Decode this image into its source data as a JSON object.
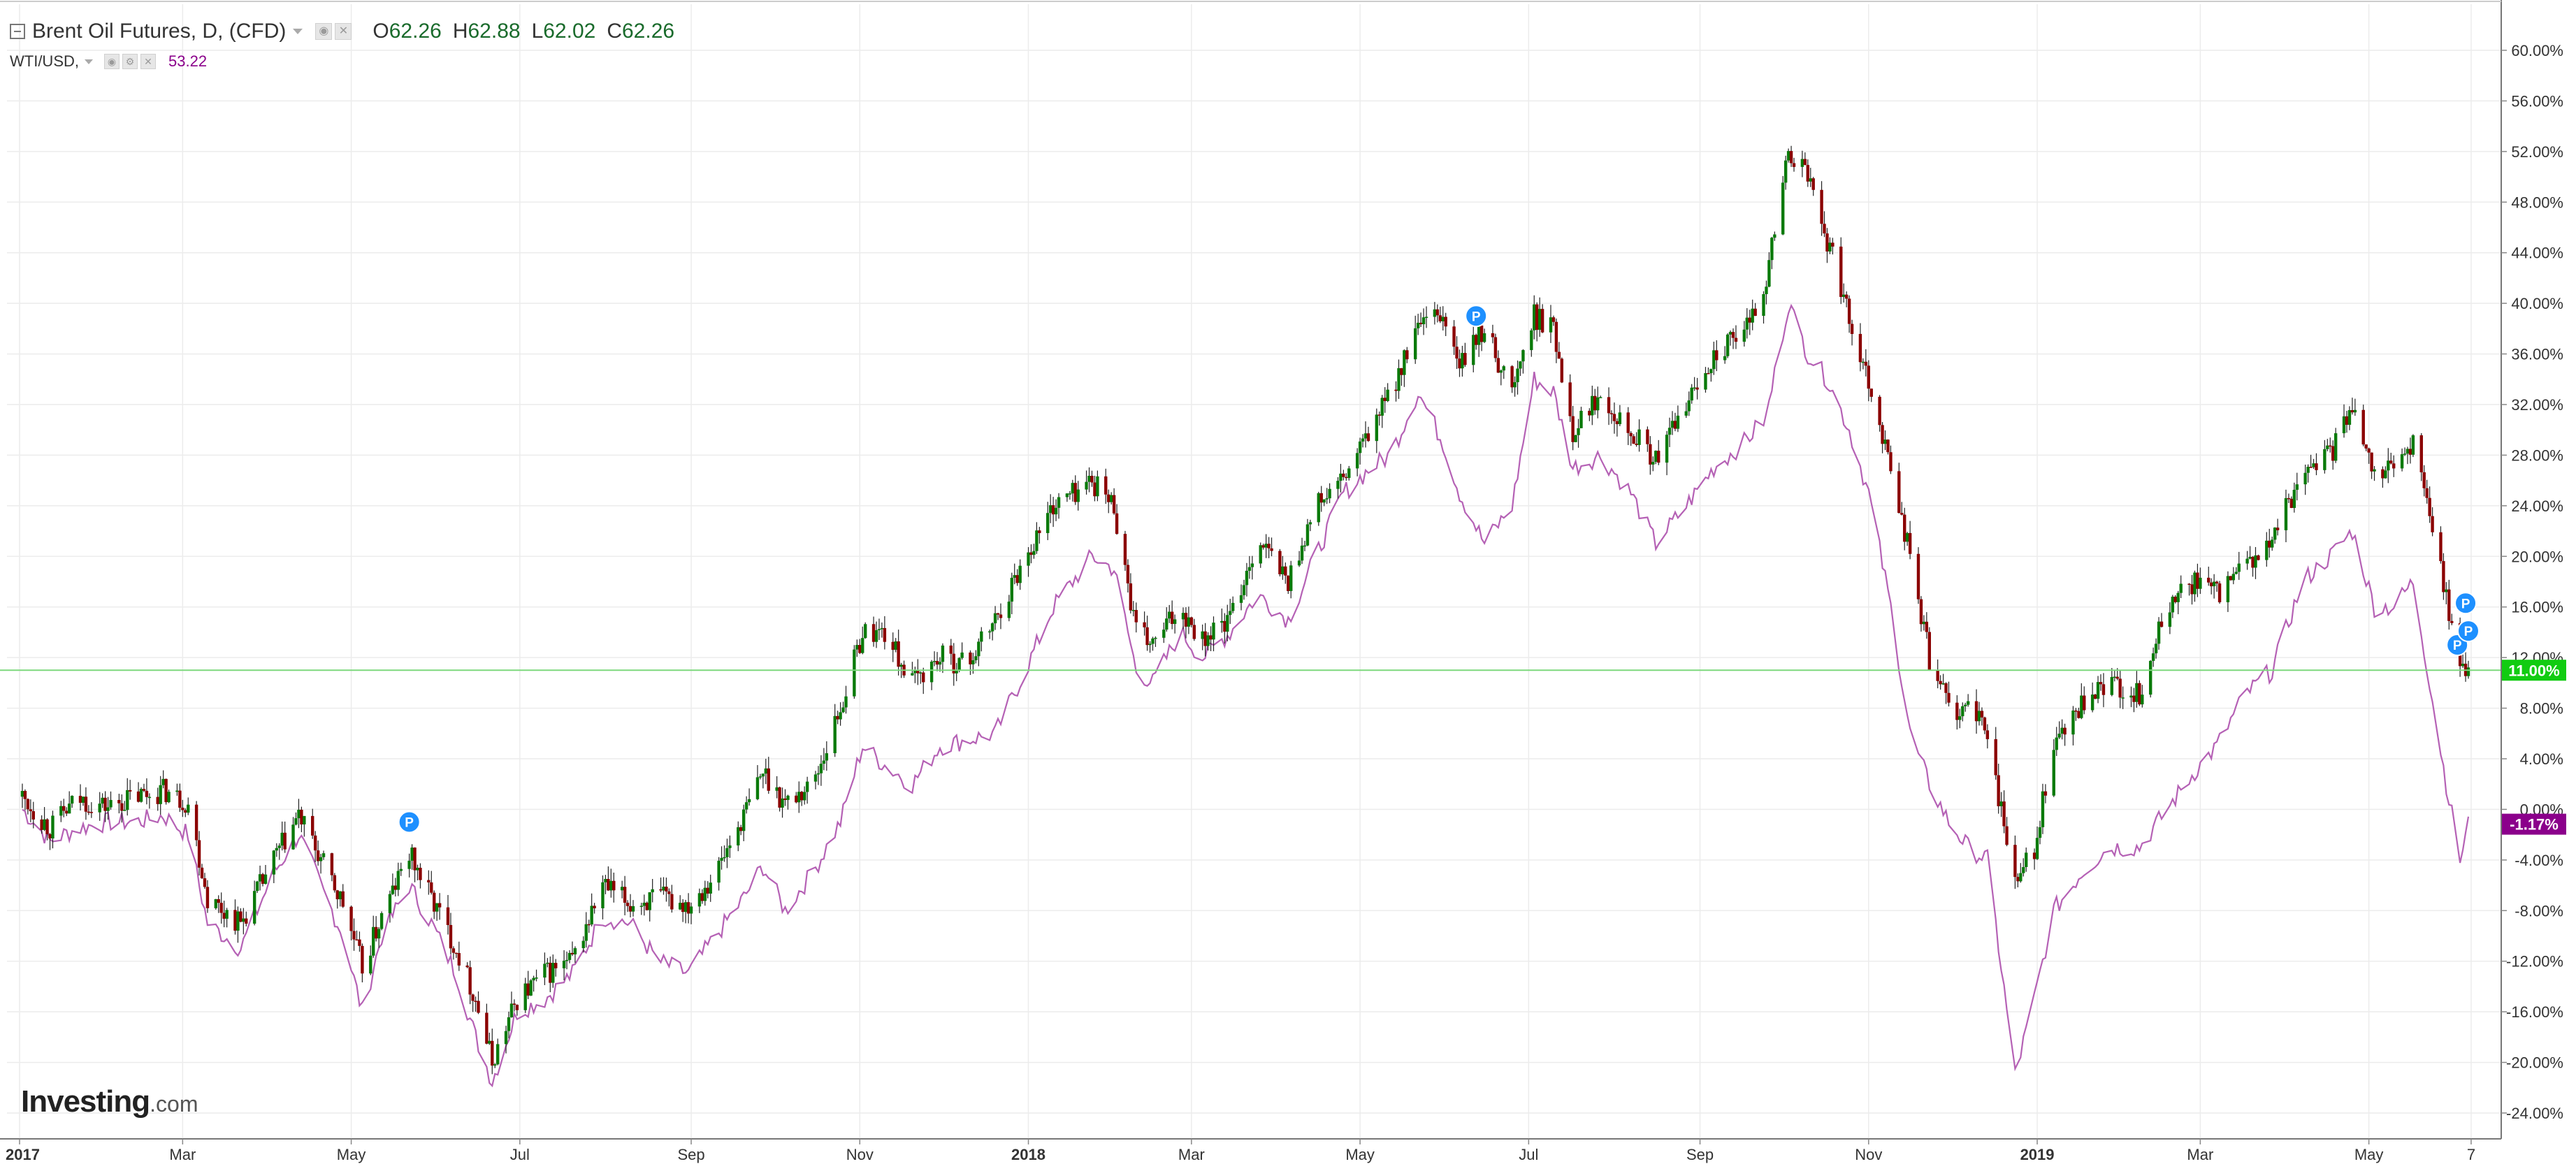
{
  "legend": {
    "symbol_title": "Brent Oil Futures, D, (CFD)",
    "ohlc": {
      "open_label": "O",
      "open": "62.26",
      "high_label": "H",
      "high": "62.88",
      "low_label": "L",
      "low": "62.02",
      "close_label": "C",
      "close": "62.26"
    },
    "compare_symbol": "WTI/USD,",
    "compare_value": "53.22"
  },
  "branding": {
    "logo_main": "Investing",
    "logo_domain": ".com"
  },
  "colors": {
    "candle_up": "#0a7a0a",
    "candle_down": "#8b0000",
    "compare_line": "#b561b5",
    "current_line": "#7dd87d",
    "badge_green": "#11cc11",
    "badge_purple": "#8b008b",
    "pin_blue": "#1e90ff",
    "grid": "#ececec"
  },
  "chart_data": {
    "type": "line",
    "subtype": "candlestick-percent-comparison",
    "y_axis": {
      "unit": "%",
      "range": [
        -26,
        62
      ],
      "ticks": [
        "60.00%",
        "56.00%",
        "52.00%",
        "48.00%",
        "44.00%",
        "40.00%",
        "36.00%",
        "32.00%",
        "28.00%",
        "24.00%",
        "20.00%",
        "16.00%",
        "12.00%",
        "8.00%",
        "4.00%",
        "0.00%",
        "-4.00%",
        "-8.00%",
        "-12.00%",
        "-16.00%",
        "-20.00%",
        "-24.00%"
      ],
      "side": "right"
    },
    "x_axis": {
      "range": [
        "2017-01-01",
        "2019-06-06"
      ],
      "ticks": [
        {
          "label": "2017",
          "date": "2017-01-01",
          "bold": true
        },
        {
          "label": "Mar",
          "date": "2017-03-01"
        },
        {
          "label": "May",
          "date": "2017-05-01"
        },
        {
          "label": "Jul",
          "date": "2017-07-01"
        },
        {
          "label": "Sep",
          "date": "2017-09-01"
        },
        {
          "label": "Nov",
          "date": "2017-11-01"
        },
        {
          "label": "2018",
          "date": "2018-01-01",
          "bold": true
        },
        {
          "label": "Mar",
          "date": "2018-03-01"
        },
        {
          "label": "May",
          "date": "2018-05-01"
        },
        {
          "label": "Jul",
          "date": "2018-07-01"
        },
        {
          "label": "Sep",
          "date": "2018-09-01"
        },
        {
          "label": "Nov",
          "date": "2018-11-01"
        },
        {
          "label": "2019",
          "date": "2019-01-01",
          "bold": true
        },
        {
          "label": "Mar",
          "date": "2019-03-01"
        },
        {
          "label": "May",
          "date": "2019-05-01"
        },
        {
          "label": "7",
          "date": "2019-06-07"
        }
      ]
    },
    "grid": true,
    "current_value_badges": [
      {
        "label": "11.00%",
        "value": 11.0,
        "color_key": "badge_green"
      },
      {
        "label": "-1.17%",
        "value": -1.17,
        "color_key": "badge_purple"
      }
    ],
    "event_markers": [
      {
        "label": "P",
        "date": "2017-05-22",
        "value": -1.0
      },
      {
        "label": "P",
        "date": "2018-06-12",
        "value": 39.0
      },
      {
        "label": "P",
        "date": "2019-06-02",
        "value": 13.0
      },
      {
        "label": "P",
        "date": "2019-06-05",
        "value": 16.3
      },
      {
        "label": "P",
        "date": "2019-06-06",
        "value": 14.1
      }
    ],
    "series": [
      {
        "name": "Brent Oil Futures, D, (CFD)",
        "style": "candlestick",
        "points": [
          [
            "2017-01-02",
            1.0
          ],
          [
            "2017-01-12",
            -1.5
          ],
          [
            "2017-01-22",
            0.8
          ],
          [
            "2017-02-02",
            0.2
          ],
          [
            "2017-02-12",
            1.0
          ],
          [
            "2017-02-22",
            1.5
          ],
          [
            "2017-03-03",
            0.5
          ],
          [
            "2017-03-10",
            -7.0
          ],
          [
            "2017-03-22",
            -9.0
          ],
          [
            "2017-04-03",
            -4.0
          ],
          [
            "2017-04-12",
            -0.5
          ],
          [
            "2017-04-20",
            -4.0
          ],
          [
            "2017-04-28",
            -7.5
          ],
          [
            "2017-05-05",
            -12.5
          ],
          [
            "2017-05-12",
            -8.5
          ],
          [
            "2017-05-22",
            -3.5
          ],
          [
            "2017-05-30",
            -7.0
          ],
          [
            "2017-06-08",
            -11.0
          ],
          [
            "2017-06-15",
            -15.0
          ],
          [
            "2017-06-21",
            -20.0
          ],
          [
            "2017-06-30",
            -15.0
          ],
          [
            "2017-07-10",
            -13.0
          ],
          [
            "2017-07-20",
            -12.0
          ],
          [
            "2017-07-31",
            -6.0
          ],
          [
            "2017-08-10",
            -7.5
          ],
          [
            "2017-08-20",
            -7.0
          ],
          [
            "2017-08-31",
            -7.5
          ],
          [
            "2017-09-10",
            -5.0
          ],
          [
            "2017-09-20",
            -0.5
          ],
          [
            "2017-09-27",
            3.0
          ],
          [
            "2017-10-05",
            0.5
          ],
          [
            "2017-10-15",
            2.0
          ],
          [
            "2017-10-25",
            8.0
          ],
          [
            "2017-11-02",
            14.0
          ],
          [
            "2017-11-10",
            14.0
          ],
          [
            "2017-11-20",
            10.0
          ],
          [
            "2017-11-30",
            12.0
          ],
          [
            "2017-12-10",
            11.5
          ],
          [
            "2017-12-20",
            15.0
          ],
          [
            "2017-12-31",
            20.0
          ],
          [
            "2018-01-10",
            24.0
          ],
          [
            "2018-01-24",
            26.0
          ],
          [
            "2018-02-01",
            24.0
          ],
          [
            "2018-02-09",
            14.0
          ],
          [
            "2018-02-15",
            13.0
          ],
          [
            "2018-02-25",
            16.0
          ],
          [
            "2018-03-05",
            13.5
          ],
          [
            "2018-03-15",
            15.0
          ],
          [
            "2018-03-25",
            21.5
          ],
          [
            "2018-04-05",
            18.0
          ],
          [
            "2018-04-15",
            24.0
          ],
          [
            "2018-04-25",
            26.0
          ],
          [
            "2018-05-05",
            30.0
          ],
          [
            "2018-05-12",
            33.0
          ],
          [
            "2018-05-22",
            38.0
          ],
          [
            "2018-05-31",
            39.0
          ],
          [
            "2018-06-06",
            35.0
          ],
          [
            "2018-06-15",
            38.0
          ],
          [
            "2018-06-25",
            33.0
          ],
          [
            "2018-07-03",
            39.0
          ],
          [
            "2018-07-10",
            38.0
          ],
          [
            "2018-07-17",
            30.0
          ],
          [
            "2018-07-27",
            33.0
          ],
          [
            "2018-08-07",
            30.0
          ],
          [
            "2018-08-16",
            27.5
          ],
          [
            "2018-08-27",
            32.0
          ],
          [
            "2018-09-06",
            36.0
          ],
          [
            "2018-09-17",
            37.5
          ],
          [
            "2018-09-25",
            42.0
          ],
          [
            "2018-10-03",
            52.0
          ],
          [
            "2018-10-10",
            50.0
          ],
          [
            "2018-10-17",
            45.0
          ],
          [
            "2018-10-25",
            39.0
          ],
          [
            "2018-11-01",
            34.0
          ],
          [
            "2018-11-09",
            27.0
          ],
          [
            "2018-11-16",
            20.0
          ],
          [
            "2018-11-23",
            12.0
          ],
          [
            "2018-11-30",
            8.0
          ],
          [
            "2018-12-07",
            8.0
          ],
          [
            "2018-12-14",
            6.0
          ],
          [
            "2018-12-24",
            -6.0
          ],
          [
            "2018-12-31",
            -3.0
          ],
          [
            "2019-01-07",
            5.0
          ],
          [
            "2019-01-17",
            8.0
          ],
          [
            "2019-01-27",
            10.0
          ],
          [
            "2019-02-07",
            9.0
          ],
          [
            "2019-02-17",
            16.0
          ],
          [
            "2019-02-27",
            18.0
          ],
          [
            "2019-03-07",
            17.0
          ],
          [
            "2019-03-17",
            19.0
          ],
          [
            "2019-03-27",
            21.0
          ],
          [
            "2019-04-07",
            27.0
          ],
          [
            "2019-04-17",
            28.0
          ],
          [
            "2019-04-25",
            32.0
          ],
          [
            "2019-05-03",
            27.0
          ],
          [
            "2019-05-10",
            27.0
          ],
          [
            "2019-05-17",
            29.0
          ],
          [
            "2019-05-23",
            23.0
          ],
          [
            "2019-05-29",
            17.0
          ],
          [
            "2019-06-03",
            11.0
          ],
          [
            "2019-06-06",
            11.0
          ]
        ]
      },
      {
        "name": "WTI/USD,",
        "style": "line",
        "points": [
          [
            "2017-01-02",
            0.0
          ],
          [
            "2017-01-12",
            -2.5
          ],
          [
            "2017-01-22",
            -1.5
          ],
          [
            "2017-02-02",
            -1.0
          ],
          [
            "2017-02-12",
            -1.0
          ],
          [
            "2017-02-22",
            -0.5
          ],
          [
            "2017-03-03",
            -2.0
          ],
          [
            "2017-03-10",
            -9.0
          ],
          [
            "2017-03-22",
            -11.0
          ],
          [
            "2017-04-03",
            -5.0
          ],
          [
            "2017-04-12",
            -2.0
          ],
          [
            "2017-04-20",
            -6.0
          ],
          [
            "2017-04-28",
            -10.0
          ],
          [
            "2017-05-05",
            -16.0
          ],
          [
            "2017-05-12",
            -10.0
          ],
          [
            "2017-05-22",
            -6.0
          ],
          [
            "2017-05-30",
            -9.0
          ],
          [
            "2017-06-08",
            -13.0
          ],
          [
            "2017-06-15",
            -18.0
          ],
          [
            "2017-06-21",
            -21.5
          ],
          [
            "2017-06-30",
            -16.0
          ],
          [
            "2017-07-10",
            -15.0
          ],
          [
            "2017-07-20",
            -13.0
          ],
          [
            "2017-07-31",
            -8.5
          ],
          [
            "2017-08-10",
            -9.0
          ],
          [
            "2017-08-20",
            -12.0
          ],
          [
            "2017-08-31",
            -13.0
          ],
          [
            "2017-09-10",
            -10.0
          ],
          [
            "2017-09-20",
            -7.0
          ],
          [
            "2017-09-27",
            -4.5
          ],
          [
            "2017-10-05",
            -8.0
          ],
          [
            "2017-10-15",
            -5.0
          ],
          [
            "2017-10-25",
            -1.0
          ],
          [
            "2017-11-02",
            5.0
          ],
          [
            "2017-11-10",
            3.5
          ],
          [
            "2017-11-20",
            2.0
          ],
          [
            "2017-11-30",
            5.0
          ],
          [
            "2017-12-10",
            5.5
          ],
          [
            "2017-12-20",
            6.0
          ],
          [
            "2017-12-31",
            11.0
          ],
          [
            "2018-01-10",
            16.0
          ],
          [
            "2018-01-24",
            20.0
          ],
          [
            "2018-02-01",
            19.0
          ],
          [
            "2018-02-09",
            11.0
          ],
          [
            "2018-02-15",
            10.0
          ],
          [
            "2018-02-25",
            14.0
          ],
          [
            "2018-03-05",
            12.0
          ],
          [
            "2018-03-15",
            14.0
          ],
          [
            "2018-03-25",
            17.0
          ],
          [
            "2018-04-05",
            15.0
          ],
          [
            "2018-04-15",
            20.0
          ],
          [
            "2018-04-25",
            25.0
          ],
          [
            "2018-05-05",
            27.0
          ],
          [
            "2018-05-12",
            28.0
          ],
          [
            "2018-05-22",
            33.0
          ],
          [
            "2018-05-31",
            29.0
          ],
          [
            "2018-06-06",
            25.0
          ],
          [
            "2018-06-15",
            21.0
          ],
          [
            "2018-06-25",
            24.0
          ],
          [
            "2018-07-03",
            34.0
          ],
          [
            "2018-07-10",
            33.0
          ],
          [
            "2018-07-17",
            27.0
          ],
          [
            "2018-07-27",
            28.0
          ],
          [
            "2018-08-07",
            25.0
          ],
          [
            "2018-08-16",
            21.0
          ],
          [
            "2018-08-27",
            24.0
          ],
          [
            "2018-09-06",
            27.0
          ],
          [
            "2018-09-17",
            29.0
          ],
          [
            "2018-09-25",
            31.0
          ],
          [
            "2018-10-03",
            40.0
          ],
          [
            "2018-10-10",
            36.0
          ],
          [
            "2018-10-17",
            34.0
          ],
          [
            "2018-10-25",
            30.0
          ],
          [
            "2018-11-01",
            25.0
          ],
          [
            "2018-11-09",
            16.0
          ],
          [
            "2018-11-16",
            6.0
          ],
          [
            "2018-11-23",
            2.0
          ],
          [
            "2018-11-30",
            -1.0
          ],
          [
            "2018-12-07",
            -3.0
          ],
          [
            "2018-12-14",
            -4.0
          ],
          [
            "2018-12-24",
            -21.0
          ],
          [
            "2018-12-31",
            -15.0
          ],
          [
            "2019-01-07",
            -8.0
          ],
          [
            "2019-01-17",
            -5.0
          ],
          [
            "2019-01-27",
            -3.0
          ],
          [
            "2019-02-07",
            -3.0
          ],
          [
            "2019-02-17",
            0.0
          ],
          [
            "2019-02-27",
            3.0
          ],
          [
            "2019-03-07",
            5.0
          ],
          [
            "2019-03-17",
            9.0
          ],
          [
            "2019-03-27",
            11.0
          ],
          [
            "2019-04-07",
            18.0
          ],
          [
            "2019-04-17",
            20.0
          ],
          [
            "2019-04-25",
            22.0
          ],
          [
            "2019-05-03",
            16.0
          ],
          [
            "2019-05-10",
            16.0
          ],
          [
            "2019-05-17",
            18.0
          ],
          [
            "2019-05-23",
            10.0
          ],
          [
            "2019-05-29",
            2.0
          ],
          [
            "2019-06-03",
            -4.0
          ],
          [
            "2019-06-06",
            -1.17
          ]
        ]
      }
    ]
  }
}
